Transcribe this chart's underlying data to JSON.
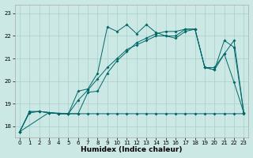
{
  "xlabel": "Humidex (Indice chaleur)",
  "bg_color": "#cce8e5",
  "grid_color": "#aacfcc",
  "line_color": "#006868",
  "xlim": [
    -0.5,
    23.5
  ],
  "ylim": [
    17.5,
    23.4
  ],
  "yticks": [
    18,
    19,
    20,
    21,
    22,
    23
  ],
  "xticks": [
    0,
    1,
    2,
    3,
    4,
    5,
    6,
    7,
    8,
    9,
    10,
    11,
    12,
    13,
    14,
    15,
    16,
    17,
    18,
    19,
    20,
    21,
    22,
    23
  ],
  "series1_x": [
    0,
    1,
    2,
    3,
    4,
    5,
    6,
    7,
    8,
    9,
    10,
    11,
    12,
    13,
    14,
    15,
    16,
    17,
    18,
    19,
    20,
    21,
    22,
    23
  ],
  "series1_y": [
    17.75,
    18.65,
    18.65,
    18.6,
    18.55,
    18.55,
    19.55,
    19.65,
    20.35,
    22.4,
    22.2,
    22.5,
    22.1,
    22.5,
    22.15,
    22.0,
    22.0,
    22.3,
    22.3,
    20.6,
    20.5,
    21.8,
    21.5,
    18.6
  ],
  "series2_x": [
    0,
    3,
    5,
    6,
    7,
    8,
    9,
    10,
    11,
    12,
    13,
    14,
    15,
    16,
    17,
    18,
    19,
    20,
    21,
    22,
    23
  ],
  "series2_y": [
    17.75,
    18.6,
    18.55,
    18.55,
    19.5,
    19.55,
    20.35,
    20.9,
    21.3,
    21.7,
    21.9,
    22.1,
    22.2,
    22.2,
    22.3,
    22.3,
    20.6,
    20.6,
    21.2,
    21.8,
    18.6
  ],
  "series3_x": [
    0,
    1,
    2,
    3,
    4,
    5,
    6,
    7,
    8,
    9,
    10,
    11,
    12,
    13,
    14,
    15,
    16,
    17,
    18,
    19,
    20,
    21,
    22,
    23
  ],
  "series3_y": [
    17.75,
    18.6,
    18.65,
    18.6,
    18.55,
    18.55,
    19.15,
    19.6,
    20.1,
    20.6,
    21.0,
    21.4,
    21.6,
    21.8,
    22.0,
    22.0,
    21.9,
    22.2,
    22.3,
    20.6,
    20.5,
    21.2,
    19.95,
    18.6
  ],
  "series4_x": [
    0,
    1,
    2,
    3,
    4,
    5,
    6,
    7,
    8,
    9,
    10,
    11,
    12,
    13,
    14,
    15,
    16,
    17,
    18,
    19,
    20,
    21,
    22,
    23
  ],
  "series4_y": [
    17.75,
    18.6,
    18.65,
    18.6,
    18.55,
    18.55,
    18.55,
    18.55,
    18.55,
    18.55,
    18.55,
    18.55,
    18.55,
    18.55,
    18.55,
    18.55,
    18.55,
    18.55,
    18.55,
    18.55,
    18.55,
    18.55,
    18.55,
    18.55
  ]
}
